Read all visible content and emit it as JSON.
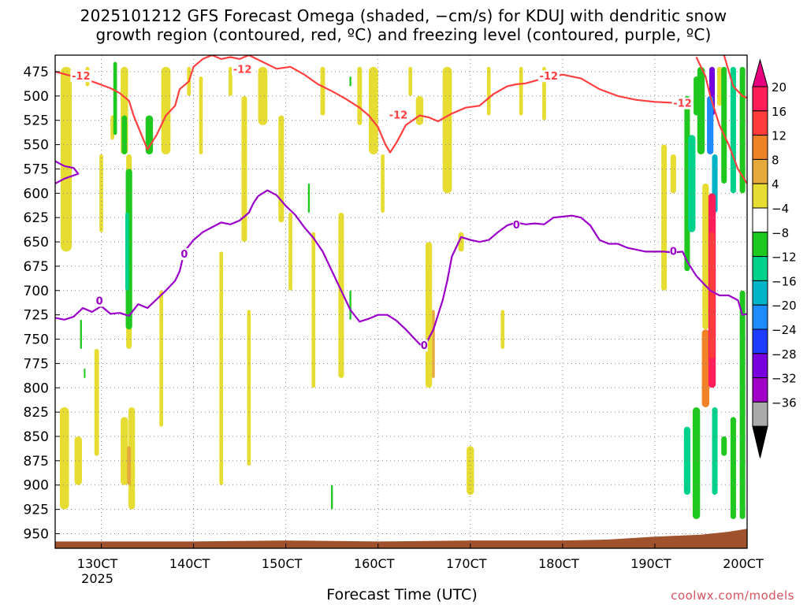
{
  "chart_data": {
    "type": "heatmap",
    "title": "2025101212 GFS Forecast Omega (shaded, −cm/s) for KDUJ with dendritic snow",
    "subtitle": "growth region (contoured, red, ºC) and freezing level (contoured, purple, ºC)",
    "xlabel": "Forecast Time (UTC)",
    "ylabel": "",
    "credit": "coolwx.com/models",
    "x_tick_labels": [
      "130CT",
      "140CT",
      "150CT",
      "160CT",
      "170CT",
      "180CT",
      "190CT",
      "200CT"
    ],
    "x_year_label": "2025",
    "x_ticks_day": [
      13,
      14,
      15,
      16,
      17,
      18,
      19,
      20
    ],
    "xlim_day": [
      12.5,
      20.0
    ],
    "y_tick_labels": [
      "475",
      "500",
      "525",
      "550",
      "575",
      "600",
      "625",
      "650",
      "675",
      "700",
      "725",
      "750",
      "775",
      "800",
      "825",
      "850",
      "875",
      "900",
      "925",
      "950"
    ],
    "y_ticks": [
      475,
      500,
      525,
      550,
      575,
      600,
      625,
      650,
      675,
      700,
      725,
      750,
      775,
      800,
      825,
      850,
      875,
      900,
      925,
      950
    ],
    "ylim": [
      458,
      965
    ],
    "grid": true,
    "colorbar": {
      "labels": [
        "20",
        "16",
        "12",
        "8",
        "4",
        "−4",
        "−8",
        "−12",
        "−16",
        "−20",
        "−24",
        "−28",
        "−32",
        "−36"
      ],
      "colors": [
        "#ff1e5a",
        "#ff3c3c",
        "#f08228",
        "#e6aa3c",
        "#e6dc32",
        "#ffffff",
        "#1ec81e",
        "#00d28c",
        "#00b4c8",
        "#1e8cff",
        "#1e3cff",
        "#7800dc",
        "#a000c8",
        "#aaaaaa"
      ],
      "top_arrow_color": "#e6007e",
      "bottom_arrow_color": "#000000"
    },
    "contour_labels": {
      "dendritic": "-12",
      "freezing": "0"
    },
    "series": [
      {
        "color": "#ff4040",
        "contour": -12,
        "x": [
          12.5,
          12.7,
          12.9,
          13.1,
          13.2,
          13.3,
          13.35,
          13.5,
          13.6,
          13.7,
          13.8,
          13.85,
          13.95,
          14.0,
          14.1,
          14.2,
          14.3,
          14.4,
          14.5,
          14.6,
          14.75,
          14.9,
          15.05,
          15.2,
          15.35,
          15.5,
          15.65,
          15.8,
          15.9,
          16.0,
          16.08,
          16.13,
          16.2,
          16.3,
          16.45,
          16.55,
          16.65,
          16.8,
          16.95,
          17.1,
          17.25,
          17.4,
          17.5,
          17.6,
          17.75,
          17.9,
          18.0,
          18.2,
          18.4,
          18.6,
          18.8,
          19.0,
          19.2,
          19.3,
          19.4
        ],
        "y": [
          475,
          480,
          485,
          492,
          497,
          505,
          520,
          555,
          540,
          520,
          510,
          493,
          485,
          470,
          462,
          458,
          462,
          460,
          462,
          458,
          465,
          472,
          470,
          478,
          488,
          495,
          503,
          512,
          520,
          532,
          550,
          558,
          548,
          530,
          520,
          522,
          526,
          518,
          512,
          510,
          498,
          490,
          488,
          487,
          483,
          480,
          478,
          482,
          493,
          500,
          504,
          506,
          507,
          510,
          512
        ],
        "labels_at": [
          [
            12.78,
            480
          ],
          [
            14.53,
            473
          ],
          [
            16.22,
            520
          ],
          [
            17.85,
            480
          ],
          [
            19.3,
            508
          ]
        ]
      },
      {
        "color": "#ff4040",
        "contour": -12,
        "x": [
          19.45,
          19.55,
          19.6,
          19.7,
          19.8,
          19.9,
          20.0
        ],
        "y": [
          460,
          480,
          500,
          530,
          550,
          575,
          590
        ],
        "labels_at": []
      },
      {
        "color": "#ff4040",
        "contour": -12,
        "x": [
          19.75,
          19.85,
          19.95,
          20.0
        ],
        "y": [
          458,
          490,
          500,
          502
        ],
        "labels_at": []
      },
      {
        "color": "#9b00c8",
        "contour": 0,
        "x": [
          12.5,
          12.6,
          12.7,
          12.75,
          12.6,
          12.5
        ],
        "y": [
          567,
          572,
          574,
          580,
          585,
          590
        ],
        "labels_at": []
      },
      {
        "color": "#9b00c8",
        "contour": 0,
        "x": [
          12.5,
          12.6,
          12.7,
          12.8,
          12.9,
          13.0,
          13.1,
          13.2,
          13.3,
          13.4,
          13.5,
          13.6,
          13.7,
          13.8,
          13.85,
          13.9,
          14.0,
          14.1,
          14.2,
          14.3,
          14.4,
          14.5,
          14.6,
          14.65,
          14.7,
          14.8,
          14.9,
          15.0,
          15.1,
          15.2,
          15.3,
          15.4,
          15.5,
          15.6,
          15.7,
          15.8,
          15.9,
          16.0,
          16.1,
          16.2,
          16.3,
          16.45,
          16.5,
          16.6,
          16.7,
          16.75,
          16.8,
          16.9,
          17.0,
          17.1,
          17.2,
          17.3,
          17.4,
          17.5,
          17.6,
          17.7,
          17.8,
          17.9,
          18.0,
          18.1,
          18.2,
          18.3,
          18.4,
          18.5,
          18.6,
          18.7,
          18.8,
          18.9,
          19.0,
          19.1,
          19.2,
          19.3,
          19.35,
          19.45,
          19.5,
          19.6,
          19.7,
          19.8,
          19.9,
          19.95,
          20.0
        ],
        "y": [
          728,
          730,
          727,
          718,
          722,
          716,
          724,
          723,
          726,
          714,
          718,
          709,
          700,
          690,
          680,
          660,
          648,
          640,
          635,
          630,
          632,
          628,
          620,
          610,
          603,
          597,
          602,
          613,
          622,
          635,
          646,
          660,
          680,
          700,
          720,
          732,
          729,
          725,
          725,
          731,
          740,
          755,
          758,
          740,
          710,
          690,
          665,
          645,
          648,
          650,
          648,
          640,
          633,
          630,
          632,
          631,
          632,
          625,
          624,
          623,
          625,
          633,
          648,
          652,
          652,
          656,
          658,
          660,
          660,
          660,
          661,
          660,
          670,
          685,
          690,
          700,
          705,
          705,
          710,
          725,
          724
        ],
        "labels_at": [
          [
            12.98,
            711
          ],
          [
            13.9,
            663
          ],
          [
            16.5,
            757
          ],
          [
            17.5,
            633
          ],
          [
            19.2,
            660
          ]
        ]
      }
    ]
  }
}
